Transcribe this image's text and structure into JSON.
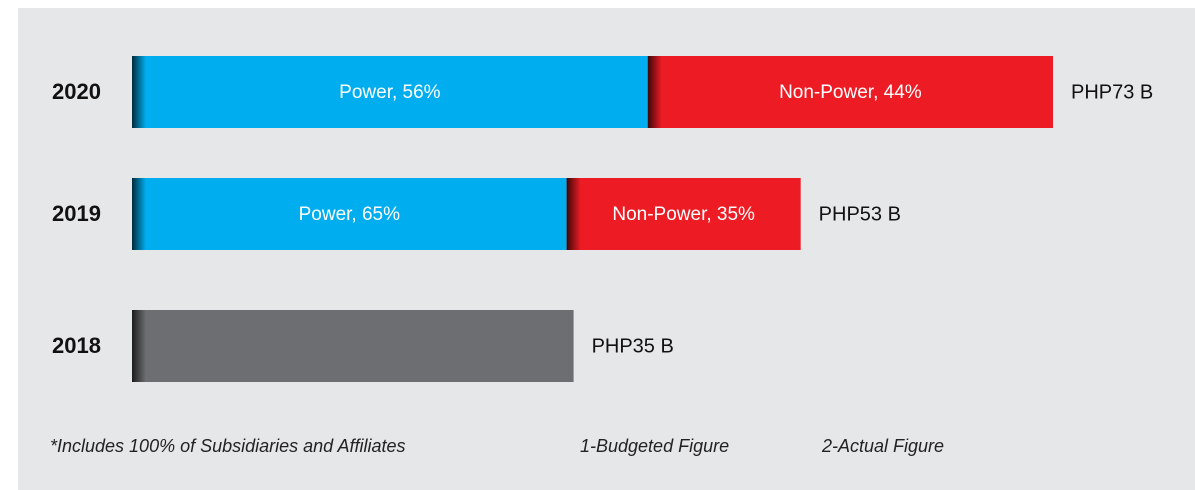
{
  "chart_data": {
    "type": "bar",
    "orientation": "horizontal",
    "categories": [
      "2020",
      "2019",
      "2018"
    ],
    "values": [
      73,
      53,
      35
    ],
    "value_labels": [
      "PHP73 B",
      "PHP53 B",
      "PHP35 B"
    ],
    "color": "#6d6e71",
    "series": [
      {
        "color": "#00aeef",
        "values": [
          56,
          65,
          null
        ],
        "value_labels": [
          "Power, 56%",
          "Power, 65%",
          null
        ]
      },
      {
        "color": "#ed1c24",
        "values": [
          44,
          35,
          null
        ],
        "value_labels": [
          "Non-Power, 44%",
          "Non-Power, 35%",
          null
        ]
      }
    ],
    "notes": [
      "*Includes 100% of Subsidiaries and Affiliates",
      "1-Budgeted Figure",
      "2-Actual Figure"
    ]
  }
}
